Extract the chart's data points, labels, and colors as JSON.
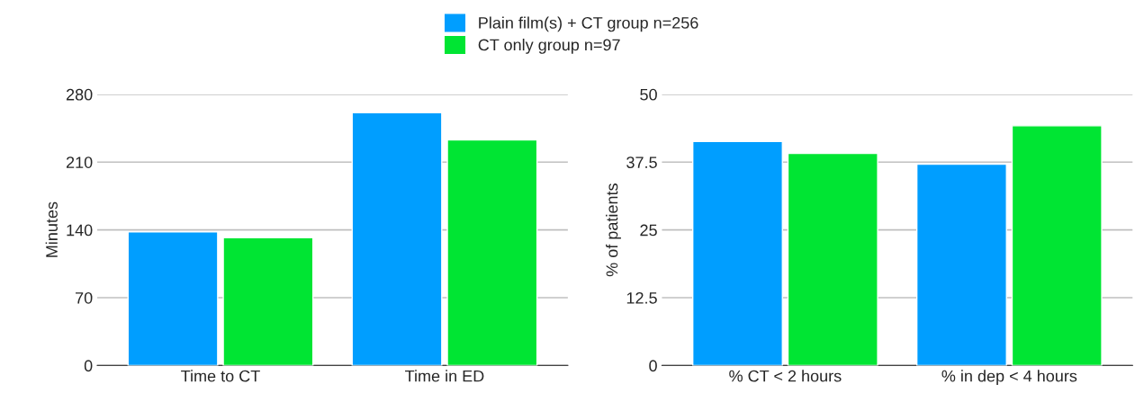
{
  "chart_data": [
    {
      "type": "bar",
      "categories": [
        "Time to CT",
        "Time in ED"
      ],
      "ylabel": "Minutes",
      "ylim": [
        0,
        280
      ],
      "yticks": [
        0,
        70,
        140,
        210,
        280
      ],
      "grid": "y",
      "legend": "top",
      "series": [
        {
          "name": "Plain film(s) + CT group n=256",
          "color": "#009eff",
          "values": [
            138,
            261
          ]
        },
        {
          "name": "CT only group n=97",
          "color": "#00e533",
          "values": [
            132,
            233
          ]
        }
      ]
    },
    {
      "type": "bar",
      "categories": [
        "% CT < 2 hours",
        "% in dep < 4 hours"
      ],
      "ylabel": "% of patients",
      "ylim": [
        0,
        50
      ],
      "yticks": [
        0,
        12.5,
        25,
        37.5,
        50
      ],
      "grid": "y",
      "series": [
        {
          "color": "#009eff",
          "values": [
            41.3,
            37.1
          ]
        },
        {
          "color": "#00e533",
          "values": [
            39.1,
            44.2
          ]
        }
      ]
    }
  ]
}
